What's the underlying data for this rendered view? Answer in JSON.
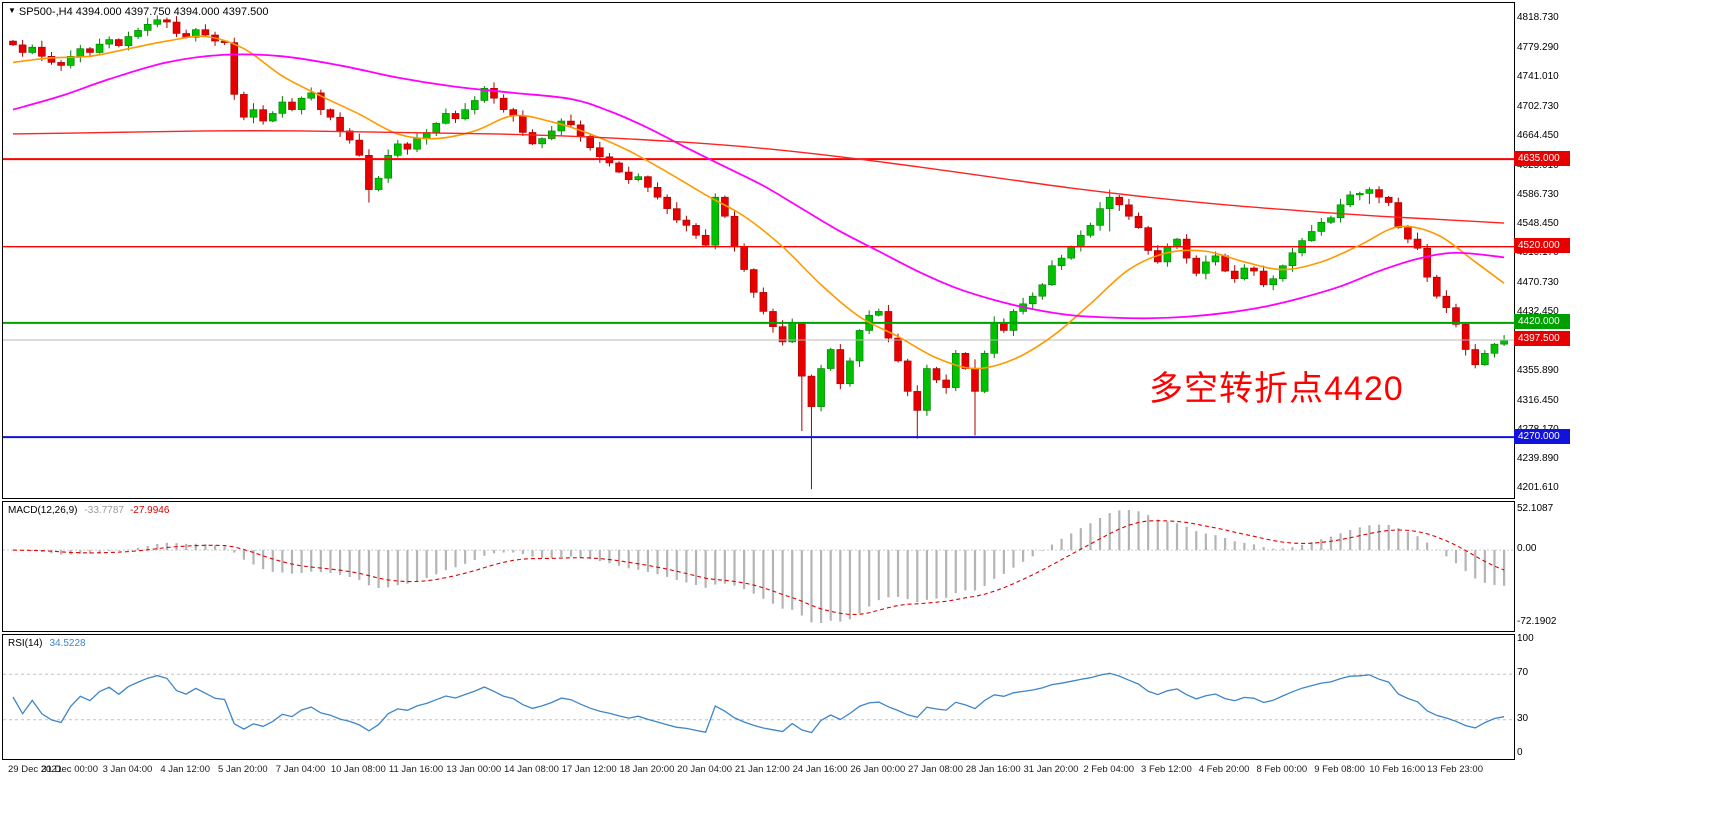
{
  "header": {
    "marker": "▼",
    "symbol_title": "SP500-,H4  4394.000 4397.750 4394.000 4397.500"
  },
  "annotation": {
    "text": "多空转折点4420",
    "color": "#ff0000"
  },
  "macd": {
    "title": "MACD(12,26,9)",
    "value_main": "-33.7787",
    "value_signal": "-27.9946",
    "axis_labels": [
      "52.1087",
      "0.00",
      "-72.1902"
    ]
  },
  "rsi": {
    "title": "RSI(14)",
    "value": "34.5228",
    "axis_labels": [
      "100",
      "70",
      "30",
      "0"
    ],
    "levels": [
      70,
      30
    ]
  },
  "price_axis": {
    "labels": [
      {
        "text": "4818.730",
        "price": 4818.73
      },
      {
        "text": "4779.290",
        "price": 4779.29
      },
      {
        "text": "4741.010",
        "price": 4741.01
      },
      {
        "text": "4702.730",
        "price": 4702.73
      },
      {
        "text": "4664.450",
        "price": 4664.45
      },
      {
        "text": "4625.010",
        "price": 4625.01
      },
      {
        "text": "4586.730",
        "price": 4586.73
      },
      {
        "text": "4548.450",
        "price": 4548.45
      },
      {
        "text": "4510.170",
        "price": 4510.17
      },
      {
        "text": "4470.730",
        "price": 4470.73
      },
      {
        "text": "4432.450",
        "price": 4432.45
      },
      {
        "text": "4355.890",
        "price": 4355.89
      },
      {
        "text": "4316.450",
        "price": 4316.45
      },
      {
        "text": "4278.170",
        "price": 4278.17
      },
      {
        "text": "4239.890",
        "price": 4239.89
      },
      {
        "text": "4201.610",
        "price": 4201.61
      }
    ],
    "badges": [
      {
        "text": "4635.000",
        "price": 4635.0,
        "color": "#e80000"
      },
      {
        "text": "4520.000",
        "price": 4520.0,
        "color": "#e80000"
      },
      {
        "text": "4420.000",
        "price": 4420.0,
        "color": "#00a000"
      },
      {
        "text": "4397.500",
        "price": 4397.5,
        "color": "#e80000"
      },
      {
        "text": "4270.000",
        "price": 4270.0,
        "color": "#1212dd"
      }
    ]
  },
  "time_axis": {
    "labels": [
      "29 Dec 2021",
      "31 Dec 00:00",
      "3 Jan 04:00",
      "4 Jan 12:00",
      "5 Jan 20:00",
      "7 Jan 04:00",
      "10 Jan 08:00",
      "11 Jan 16:00",
      "13 Jan 00:00",
      "14 Jan 08:00",
      "17 Jan 12:00",
      "18 Jan 20:00",
      "20 Jan 04:00",
      "21 Jan 12:00",
      "24 Jan 16:00",
      "26 Jan 00:00",
      "27 Jan 08:00",
      "28 Jan 16:00",
      "31 Jan 20:00",
      "2 Feb 04:00",
      "3 Feb 12:00",
      "4 Feb 20:00",
      "8 Feb 00:00",
      "9 Feb 08:00",
      "10 Feb 16:00",
      "13 Feb 23:00"
    ]
  },
  "chart_data": {
    "type": "candlestick",
    "symbol": "SP500-",
    "timeframe": "H4",
    "current_bar": {
      "open": 4394.0,
      "high": 4397.75,
      "low": 4394.0,
      "close": 4397.5
    },
    "y_range": [
      4190,
      4840
    ],
    "first_open": 4790,
    "closes": [
      4785,
      4775,
      4782,
      4770,
      4762,
      4758,
      4770,
      4780,
      4775,
      4786,
      4792,
      4784,
      4796,
      4804,
      4812,
      4818,
      4815,
      4800,
      4795,
      4805,
      4798,
      4790,
      4788,
      4720,
      4690,
      4700,
      4685,
      4695,
      4710,
      4700,
      4715,
      4722,
      4700,
      4690,
      4672,
      4660,
      4640,
      4595,
      4610,
      4640,
      4655,
      4648,
      4662,
      4670,
      4682,
      4695,
      4688,
      4700,
      4712,
      4728,
      4715,
      4700,
      4692,
      4670,
      4655,
      4662,
      4672,
      4685,
      4680,
      4665,
      4650,
      4638,
      4630,
      4618,
      4608,
      4612,
      4598,
      4585,
      4570,
      4555,
      4548,
      4535,
      4522,
      4585,
      4560,
      4520,
      4490,
      4460,
      4435,
      4415,
      4395,
      4420,
      4350,
      4310,
      4360,
      4385,
      4340,
      4370,
      4410,
      4430,
      4435,
      4400,
      4370,
      4330,
      4305,
      4360,
      4345,
      4335,
      4380,
      4360,
      4330,
      4380,
      4420,
      4410,
      4435,
      4445,
      4455,
      4470,
      4495,
      4505,
      4520,
      4535,
      4548,
      4570,
      4585,
      4575,
      4560,
      4545,
      4515,
      4500,
      4520,
      4530,
      4505,
      4485,
      4500,
      4508,
      4488,
      4478,
      4492,
      4488,
      4470,
      4478,
      4495,
      4512,
      4528,
      4540,
      4552,
      4558,
      4575,
      4588,
      4590,
      4595,
      4585,
      4578,
      4545,
      4530,
      4518,
      4480,
      4455,
      4440,
      4418,
      4385,
      4365,
      4380,
      4392,
      4397.5
    ],
    "wick_overrides": {
      "37": [
        4648,
        4578
      ],
      "82": [
        4412,
        4278
      ],
      "83": [
        4352,
        4201.6
      ],
      "94": [
        4338,
        4268
      ],
      "100": [
        4372,
        4272
      ],
      "114": [
        4595,
        4540
      ],
      "141": [
        4598,
        4576
      ]
    },
    "horizontal_lines": [
      {
        "price": 4635.0,
        "color": "#ff0000",
        "width": 2
      },
      {
        "price": 4520.0,
        "color": "#ff0000",
        "width": 1.4
      },
      {
        "price": 4420.0,
        "color": "#00a000",
        "width": 2
      },
      {
        "price": 4397.5,
        "color": "#b8b8b8",
        "width": 1
      },
      {
        "price": 4270.0,
        "color": "#1212dd",
        "width": 2
      }
    ],
    "moving_averages": [
      {
        "name": "fast",
        "color": "#ff9900",
        "width": 1.6,
        "points": [
          [
            0,
            4762
          ],
          [
            4,
            4768
          ],
          [
            8,
            4770
          ],
          [
            12,
            4780
          ],
          [
            16,
            4790
          ],
          [
            20,
            4796
          ],
          [
            24,
            4780
          ],
          [
            28,
            4744
          ],
          [
            32,
            4718
          ],
          [
            36,
            4694
          ],
          [
            40,
            4668
          ],
          [
            44,
            4662
          ],
          [
            48,
            4672
          ],
          [
            52,
            4692
          ],
          [
            56,
            4684
          ],
          [
            60,
            4668
          ],
          [
            64,
            4646
          ],
          [
            68,
            4618
          ],
          [
            72,
            4588
          ],
          [
            76,
            4560
          ],
          [
            80,
            4520
          ],
          [
            84,
            4470
          ],
          [
            88,
            4428
          ],
          [
            92,
            4402
          ],
          [
            96,
            4374
          ],
          [
            100,
            4360
          ],
          [
            104,
            4372
          ],
          [
            108,
            4402
          ],
          [
            112,
            4445
          ],
          [
            116,
            4490
          ],
          [
            120,
            4512
          ],
          [
            124,
            4514
          ],
          [
            128,
            4500
          ],
          [
            132,
            4490
          ],
          [
            136,
            4500
          ],
          [
            140,
            4522
          ],
          [
            144,
            4546
          ],
          [
            148,
            4536
          ],
          [
            152,
            4500
          ],
          [
            155,
            4472
          ]
        ]
      },
      {
        "name": "medium",
        "color": "#ff00ff",
        "width": 1.8,
        "points": [
          [
            0,
            4700
          ],
          [
            5,
            4718
          ],
          [
            10,
            4740
          ],
          [
            16,
            4762
          ],
          [
            22,
            4772
          ],
          [
            28,
            4770
          ],
          [
            34,
            4758
          ],
          [
            40,
            4742
          ],
          [
            46,
            4730
          ],
          [
            52,
            4722
          ],
          [
            58,
            4714
          ],
          [
            62,
            4698
          ],
          [
            66,
            4676
          ],
          [
            70,
            4650
          ],
          [
            74,
            4625
          ],
          [
            78,
            4600
          ],
          [
            82,
            4570
          ],
          [
            86,
            4540
          ],
          [
            90,
            4514
          ],
          [
            94,
            4488
          ],
          [
            98,
            4466
          ],
          [
            102,
            4450
          ],
          [
            106,
            4438
          ],
          [
            110,
            4430
          ],
          [
            114,
            4427
          ],
          [
            118,
            4426
          ],
          [
            122,
            4428
          ],
          [
            126,
            4433
          ],
          [
            130,
            4441
          ],
          [
            134,
            4453
          ],
          [
            138,
            4468
          ],
          [
            142,
            4488
          ],
          [
            146,
            4504
          ],
          [
            150,
            4512
          ],
          [
            155,
            4506
          ]
        ]
      },
      {
        "name": "slow",
        "color": "#ff2222",
        "width": 1.4,
        "points": [
          [
            0,
            4668
          ],
          [
            10,
            4670
          ],
          [
            20,
            4672
          ],
          [
            30,
            4672
          ],
          [
            40,
            4670
          ],
          [
            50,
            4668
          ],
          [
            60,
            4664
          ],
          [
            70,
            4657
          ],
          [
            78,
            4649
          ],
          [
            86,
            4638
          ],
          [
            94,
            4625
          ],
          [
            102,
            4611
          ],
          [
            110,
            4597
          ],
          [
            118,
            4585
          ],
          [
            126,
            4575
          ],
          [
            134,
            4567
          ],
          [
            142,
            4560
          ],
          [
            148,
            4556
          ],
          [
            155,
            4551
          ]
        ]
      }
    ],
    "indicators": {
      "macd": {
        "fast": 12,
        "slow": 26,
        "signal": 9,
        "main_value": -33.7787,
        "signal_value": -27.9946,
        "axis_max": 52.1087,
        "axis_min": -72.1902
      },
      "rsi": {
        "period": 14,
        "value": 34.5228,
        "levels": [
          70,
          30
        ]
      }
    },
    "colors": {
      "up": "#00c000",
      "up_edge": "#007d00",
      "down": "#e60000",
      "down_edge": "#a80000",
      "macd_hist": "#b4b4b4",
      "macd_signal": "#e00000",
      "rsi_line": "#3e86c8",
      "level_dash": "#c0c0c0"
    }
  }
}
